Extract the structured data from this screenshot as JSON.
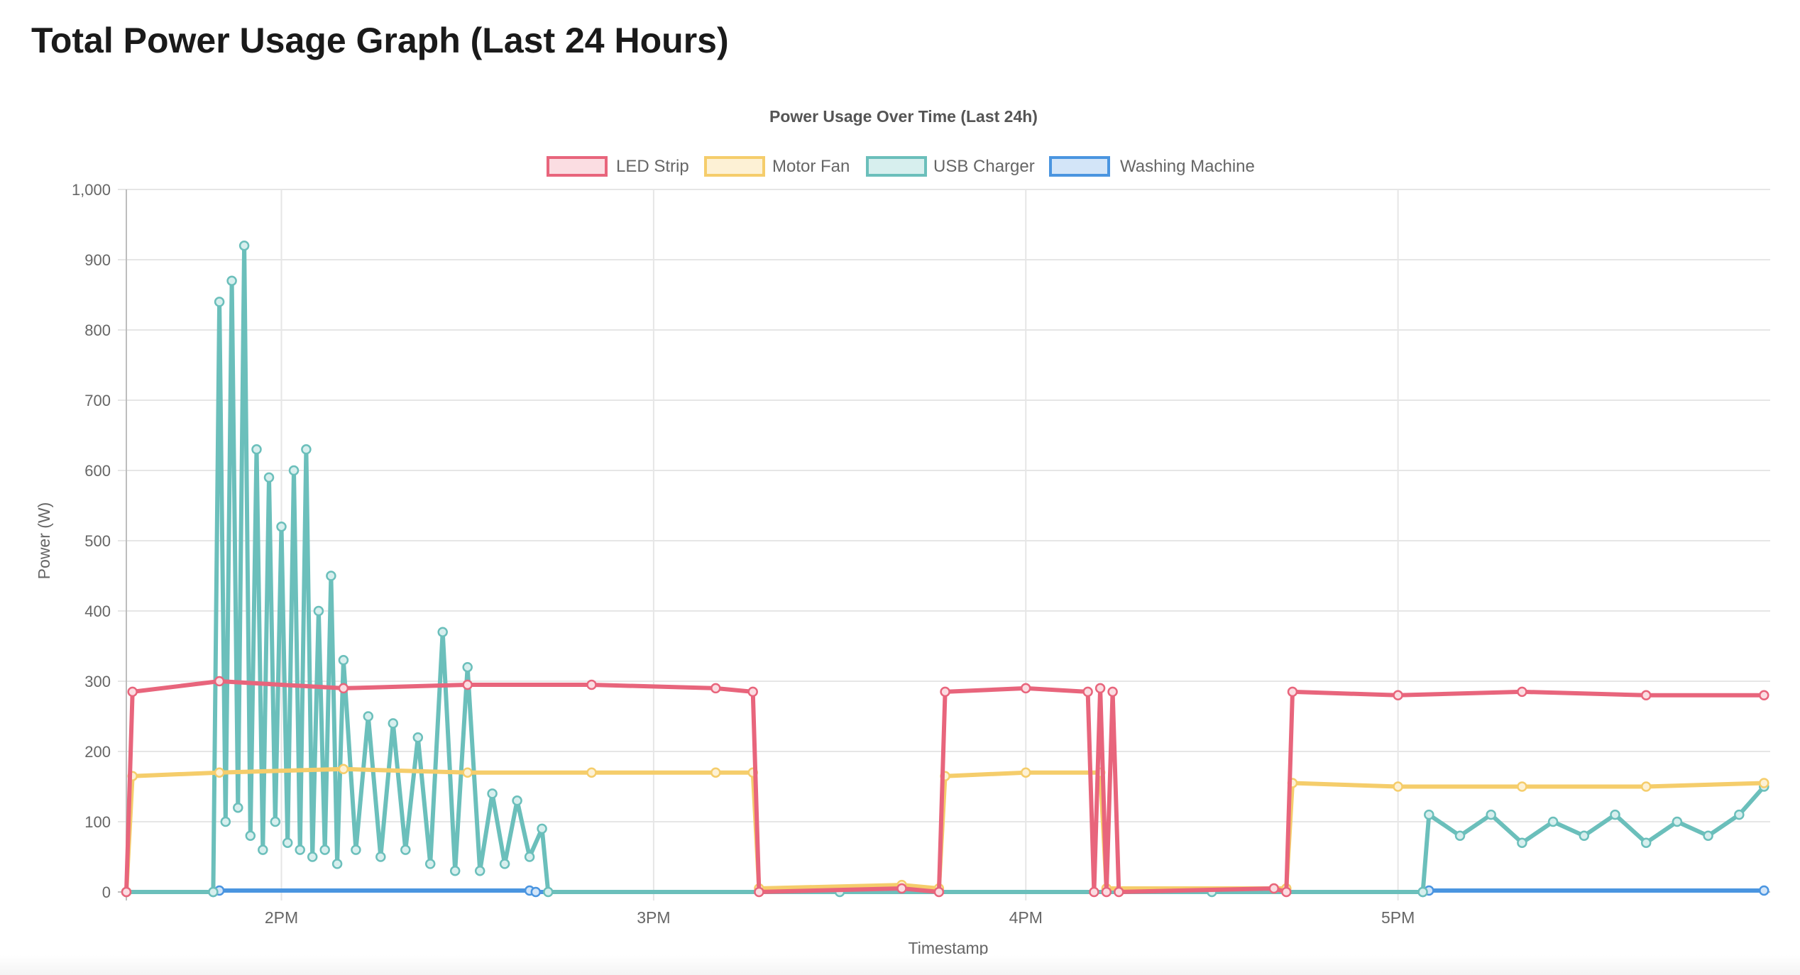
{
  "page": {
    "heading": "Total Power Usage Graph (Last 24 Hours)"
  },
  "chart_data": {
    "type": "line",
    "title": "Power Usage Over Time (Last 24h)",
    "xlabel": "Timestamp",
    "ylabel": "Power (W)",
    "ylim": [
      0,
      1000
    ],
    "yticks": [
      0,
      100,
      200,
      300,
      400,
      500,
      600,
      700,
      800,
      900,
      1000
    ],
    "ytick_labels": [
      "0",
      "100",
      "200",
      "300",
      "400",
      "500",
      "600",
      "700",
      "800",
      "900",
      "1,000"
    ],
    "xlim": [
      "13:35",
      "18:00"
    ],
    "xticks": [
      "14:00",
      "15:00",
      "16:00",
      "17:00"
    ],
    "xtick_labels": [
      "2PM",
      "3PM",
      "4PM",
      "5PM"
    ],
    "grid": true,
    "legend_position": "top",
    "series": [
      {
        "name": "LED Strip",
        "color": "#e8657c",
        "fill": "#fbdde2",
        "points": [
          [
            "13:35",
            0
          ],
          [
            "13:36",
            285
          ],
          [
            "13:50",
            300
          ],
          [
            "14:10",
            290
          ],
          [
            "14:30",
            295
          ],
          [
            "14:50",
            295
          ],
          [
            "15:10",
            290
          ],
          [
            "15:16",
            285
          ],
          [
            "15:17",
            0
          ],
          [
            "15:40",
            5
          ],
          [
            "15:46",
            0
          ],
          [
            "15:47",
            285
          ],
          [
            "16:00",
            290
          ],
          [
            "16:10",
            285
          ],
          [
            "16:11",
            0
          ],
          [
            "16:12",
            290
          ],
          [
            "16:13",
            0
          ],
          [
            "16:14",
            285
          ],
          [
            "16:15",
            0
          ],
          [
            "16:40",
            5
          ],
          [
            "16:42",
            0
          ],
          [
            "16:43",
            285
          ],
          [
            "17:00",
            280
          ],
          [
            "17:20",
            285
          ],
          [
            "17:40",
            280
          ],
          [
            "17:59",
            280
          ]
        ]
      },
      {
        "name": "Motor Fan",
        "color": "#f5cd6b",
        "fill": "#fdf1d5",
        "points": [
          [
            "13:35",
            0
          ],
          [
            "13:36",
            165
          ],
          [
            "13:50",
            170
          ],
          [
            "14:10",
            175
          ],
          [
            "14:30",
            170
          ],
          [
            "14:50",
            170
          ],
          [
            "15:10",
            170
          ],
          [
            "15:16",
            170
          ],
          [
            "15:17",
            5
          ],
          [
            "15:40",
            10
          ],
          [
            "15:46",
            5
          ],
          [
            "15:47",
            165
          ],
          [
            "16:00",
            170
          ],
          [
            "16:12",
            170
          ],
          [
            "16:13",
            5
          ],
          [
            "16:40",
            5
          ],
          [
            "16:42",
            5
          ],
          [
            "16:43",
            155
          ],
          [
            "17:00",
            150
          ],
          [
            "17:20",
            150
          ],
          [
            "17:40",
            150
          ],
          [
            "17:59",
            155
          ]
        ]
      },
      {
        "name": "USB Charger",
        "color": "#6bbfbb",
        "fill": "#d7efee",
        "points": [
          [
            "13:35",
            0
          ],
          [
            "13:49",
            0
          ],
          [
            "13:50",
            840
          ],
          [
            "13:51",
            100
          ],
          [
            "13:52",
            870
          ],
          [
            "13:53",
            120
          ],
          [
            "13:54",
            920
          ],
          [
            "13:55",
            80
          ],
          [
            "13:56",
            630
          ],
          [
            "13:57",
            60
          ],
          [
            "13:58",
            590
          ],
          [
            "13:59",
            100
          ],
          [
            "14:00",
            520
          ],
          [
            "14:01",
            70
          ],
          [
            "14:02",
            600
          ],
          [
            "14:03",
            60
          ],
          [
            "14:04",
            630
          ],
          [
            "14:05",
            50
          ],
          [
            "14:06",
            400
          ],
          [
            "14:07",
            60
          ],
          [
            "14:08",
            450
          ],
          [
            "14:09",
            40
          ],
          [
            "14:10",
            330
          ],
          [
            "14:12",
            60
          ],
          [
            "14:14",
            250
          ],
          [
            "14:16",
            50
          ],
          [
            "14:18",
            240
          ],
          [
            "14:20",
            60
          ],
          [
            "14:22",
            220
          ],
          [
            "14:24",
            40
          ],
          [
            "14:26",
            370
          ],
          [
            "14:28",
            30
          ],
          [
            "14:30",
            320
          ],
          [
            "14:32",
            30
          ],
          [
            "14:34",
            140
          ],
          [
            "14:36",
            40
          ],
          [
            "14:38",
            130
          ],
          [
            "14:40",
            50
          ],
          [
            "14:42",
            90
          ],
          [
            "14:43",
            0
          ],
          [
            "15:30",
            0
          ],
          [
            "16:30",
            0
          ],
          [
            "17:04",
            0
          ],
          [
            "17:05",
            110
          ],
          [
            "17:10",
            80
          ],
          [
            "17:15",
            110
          ],
          [
            "17:20",
            70
          ],
          [
            "17:25",
            100
          ],
          [
            "17:30",
            80
          ],
          [
            "17:35",
            110
          ],
          [
            "17:40",
            70
          ],
          [
            "17:45",
            100
          ],
          [
            "17:50",
            80
          ],
          [
            "17:55",
            110
          ],
          [
            "17:59",
            150
          ]
        ]
      },
      {
        "name": "Washing Machine",
        "color": "#4a95e0",
        "fill": "#d3e5f8",
        "points": [
          [
            "13:35",
            0
          ],
          [
            "13:49",
            0
          ],
          [
            "13:50",
            2
          ],
          [
            "14:40",
            2
          ],
          [
            "14:41",
            0
          ],
          [
            "17:04",
            0
          ],
          [
            "17:05",
            2
          ],
          [
            "17:59",
            2
          ]
        ]
      }
    ]
  }
}
